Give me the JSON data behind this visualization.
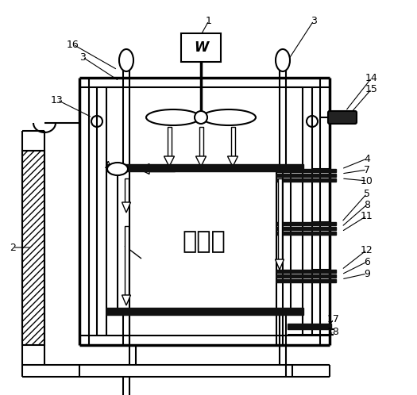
{
  "bg_color": "#ffffff",
  "line_color": "#000000",
  "chinese_text": "工作区",
  "figsize": [
    5.25,
    4.98
  ],
  "dpi": 100
}
